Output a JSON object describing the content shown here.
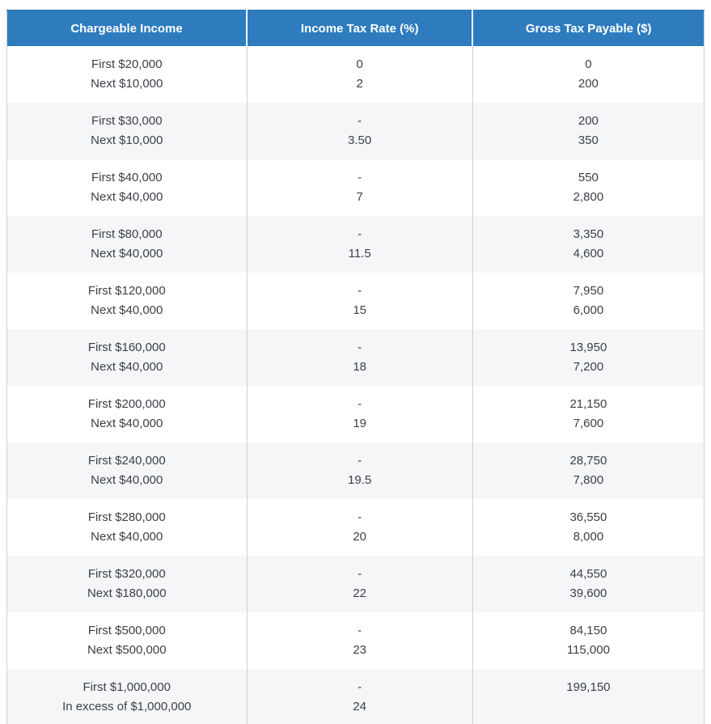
{
  "colors": {
    "header_bg": "#2e7cbe",
    "header_text": "#ffffff",
    "row_bg": "#ffffff",
    "stripe_bg": "#f5f6f8",
    "border": "#cfd1d4",
    "body_text": "#3b4046"
  },
  "chart_data": {
    "type": "table",
    "columns": [
      "Chargeable Income",
      "Income Tax Rate (%)",
      "Gross Tax Payable ($)"
    ],
    "rows": [
      {
        "income": [
          "First $20,000",
          "Next $10,000"
        ],
        "rate": [
          "0",
          "2"
        ],
        "tax": [
          "0",
          "200"
        ]
      },
      {
        "income": [
          "First $30,000",
          "Next $10,000"
        ],
        "rate": [
          "-",
          "3.50"
        ],
        "tax": [
          "200",
          "350"
        ]
      },
      {
        "income": [
          "First $40,000",
          "Next $40,000"
        ],
        "rate": [
          "-",
          "7"
        ],
        "tax": [
          "550",
          "2,800"
        ]
      },
      {
        "income": [
          "First $80,000",
          "Next $40,000"
        ],
        "rate": [
          "-",
          "11.5"
        ],
        "tax": [
          "3,350",
          "4,600"
        ]
      },
      {
        "income": [
          "First $120,000",
          "Next $40,000"
        ],
        "rate": [
          "-",
          "15"
        ],
        "tax": [
          "7,950",
          "6,000"
        ]
      },
      {
        "income": [
          "First $160,000",
          "Next $40,000"
        ],
        "rate": [
          "-",
          "18"
        ],
        "tax": [
          "13,950",
          "7,200"
        ]
      },
      {
        "income": [
          "First $200,000",
          "Next $40,000"
        ],
        "rate": [
          "-",
          "19"
        ],
        "tax": [
          "21,150",
          "7,600"
        ]
      },
      {
        "income": [
          "First $240,000",
          "Next $40,000"
        ],
        "rate": [
          "-",
          "19.5"
        ],
        "tax": [
          "28,750",
          "7,800"
        ]
      },
      {
        "income": [
          "First $280,000",
          "Next $40,000"
        ],
        "rate": [
          "-",
          "20"
        ],
        "tax": [
          "36,550",
          "8,000"
        ]
      },
      {
        "income": [
          "First $320,000",
          "Next $180,000"
        ],
        "rate": [
          "-",
          "22"
        ],
        "tax": [
          "44,550",
          "39,600"
        ]
      },
      {
        "income": [
          "First $500,000",
          "Next $500,000"
        ],
        "rate": [
          "-",
          "23"
        ],
        "tax": [
          "84,150",
          "115,000"
        ]
      },
      {
        "income": [
          "First $1,000,000",
          "In excess of $1,000,000"
        ],
        "rate": [
          "-",
          "24"
        ],
        "tax": [
          "199,150",
          ""
        ]
      }
    ]
  }
}
